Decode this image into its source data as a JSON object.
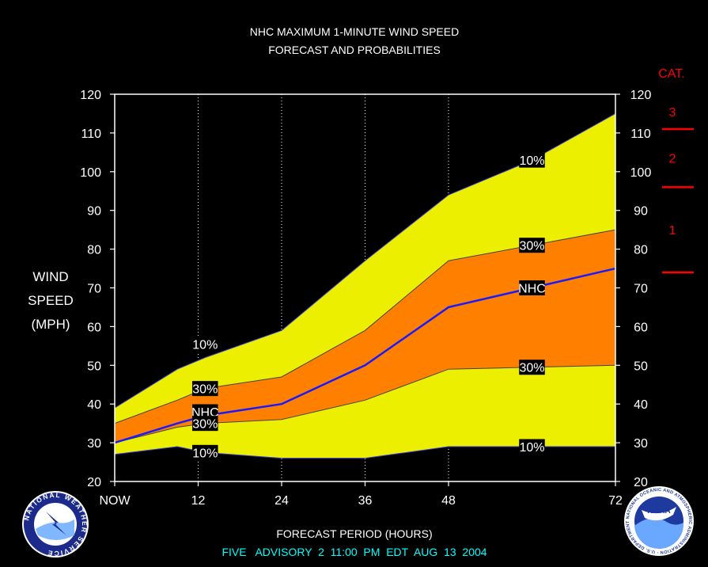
{
  "chart_data": {
    "type": "area",
    "title": "NHC MAXIMUM 1-MINUTE WIND SPEED",
    "subtitle": "FORECAST AND PROBABILITIES",
    "ylabel_lines": [
      "WIND",
      "SPEED",
      "(MPH)"
    ],
    "xlabel": "FORECAST PERIOD (HOURS)",
    "footer": "FIVE   ADVISORY  2  11:00  PM  EDT  AUG  13  2004",
    "ylim": [
      20,
      120
    ],
    "yticks": [
      20,
      30,
      40,
      50,
      60,
      70,
      80,
      90,
      100,
      110,
      120
    ],
    "xlim": [
      0,
      72
    ],
    "xticks": [
      {
        "x": 0,
        "label": "NOW"
      },
      {
        "x": 12,
        "label": "12"
      },
      {
        "x": 24,
        "label": "24"
      },
      {
        "x": 36,
        "label": "36"
      },
      {
        "x": 48,
        "label": "48"
      },
      {
        "x": 72,
        "label": "72"
      }
    ],
    "x": [
      0,
      9,
      13,
      24,
      36,
      48,
      60,
      72
    ],
    "series": [
      {
        "name": "10%",
        "band": "upper",
        "values": [
          39,
          49,
          52,
          59,
          77,
          94,
          103,
          115
        ]
      },
      {
        "name": "30%",
        "band": "upper",
        "values": [
          35,
          41,
          44,
          47,
          59,
          77,
          81,
          85
        ]
      },
      {
        "name": "NHC",
        "band": "forecast",
        "values": [
          30,
          35,
          37,
          40,
          50,
          65,
          70,
          75
        ]
      },
      {
        "name": "30%",
        "band": "lower",
        "values": [
          30,
          34,
          35,
          36,
          41,
          49,
          49.5,
          50
        ]
      },
      {
        "name": "10%",
        "band": "lower",
        "values": [
          27,
          29,
          27.5,
          26,
          26,
          29,
          29,
          29
        ]
      }
    ],
    "annotations": [
      {
        "text": "10%",
        "x": 13,
        "y": 55.5
      },
      {
        "text": "30%",
        "x": 13,
        "y": 44
      },
      {
        "text": "NHC",
        "x": 13,
        "y": 38
      },
      {
        "text": "30%",
        "x": 13,
        "y": 35
      },
      {
        "text": "10%",
        "x": 13,
        "y": 27.5
      },
      {
        "text": "10%",
        "x": 60,
        "y": 103
      },
      {
        "text": "30%",
        "x": 60,
        "y": 81
      },
      {
        "text": "NHC",
        "x": 60,
        "y": 70
      },
      {
        "text": "30%",
        "x": 60,
        "y": 49.5
      },
      {
        "text": "10%",
        "x": 60,
        "y": 29
      }
    ],
    "category_scale": {
      "title": "CAT.",
      "categories": [
        {
          "label": "3",
          "threshold": 111
        },
        {
          "label": "2",
          "threshold": 96
        },
        {
          "label": "1",
          "threshold": 74
        }
      ]
    },
    "colors": {
      "background": "#000000",
      "outer_band": "#ecf000",
      "inner_band": "#ff8000",
      "forecast_line": "#1a1aff",
      "axis": "#ffffff",
      "category": "#ff0000",
      "footer": "#00ffff"
    },
    "logos": {
      "left": "NATIONAL WEATHER SERVICE",
      "right_badge": "NOAA",
      "right_ring": "NATIONAL OCEANIC AND ATMOSPHERIC ADMINISTRATION · U.S. DEPARTMENT OF COMMERCE"
    }
  }
}
